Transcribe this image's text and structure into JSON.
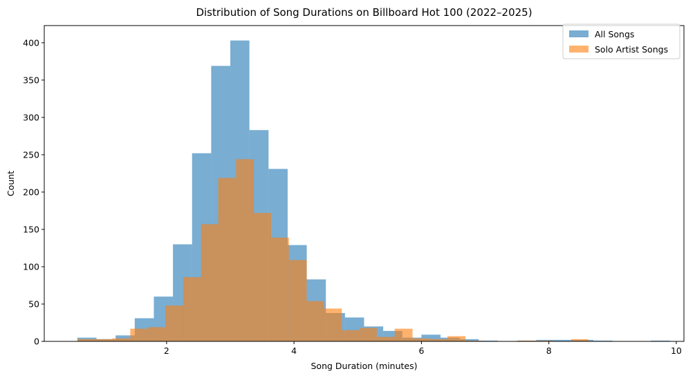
{
  "chart_data": {
    "type": "histogram",
    "title": "Distribution of Song Durations on Billboard Hot 100 (2022–2025)",
    "xlabel": "Song Duration (minutes)",
    "ylabel": "Count",
    "xlim": [
      0.08,
      10.12
    ],
    "ylim": [
      0,
      423
    ],
    "x_ticks": [
      2,
      4,
      6,
      8,
      10
    ],
    "y_ticks": [
      0,
      50,
      100,
      150,
      200,
      250,
      300,
      350,
      400
    ],
    "legend_position": "top-right",
    "grid": false,
    "series": [
      {
        "name": "All Songs",
        "color": "#1f77b4",
        "opacity": 0.6,
        "bins": [
          [
            0.6,
            0.9,
            5
          ],
          [
            0.9,
            1.2,
            3
          ],
          [
            1.2,
            1.5,
            8
          ],
          [
            1.5,
            1.8,
            31
          ],
          [
            1.8,
            2.1,
            60
          ],
          [
            2.1,
            2.4,
            130
          ],
          [
            2.4,
            2.7,
            252
          ],
          [
            2.7,
            3.0,
            369
          ],
          [
            3.0,
            3.3,
            403
          ],
          [
            3.3,
            3.6,
            283
          ],
          [
            3.6,
            3.9,
            231
          ],
          [
            3.9,
            4.2,
            129
          ],
          [
            4.2,
            4.5,
            83
          ],
          [
            4.5,
            4.8,
            38
          ],
          [
            4.8,
            5.1,
            32
          ],
          [
            5.1,
            5.4,
            20
          ],
          [
            5.4,
            5.7,
            14
          ],
          [
            5.7,
            6.0,
            5
          ],
          [
            6.0,
            6.3,
            9
          ],
          [
            6.3,
            6.6,
            5
          ],
          [
            6.6,
            6.9,
            3
          ],
          [
            6.9,
            7.2,
            1
          ],
          [
            7.2,
            7.5,
            0
          ],
          [
            7.5,
            7.8,
            1
          ],
          [
            7.8,
            8.1,
            2
          ],
          [
            8.1,
            8.4,
            2
          ],
          [
            8.4,
            8.7,
            2
          ],
          [
            8.7,
            9.0,
            1
          ],
          [
            9.0,
            9.3,
            0
          ],
          [
            9.3,
            9.6,
            0
          ],
          [
            9.6,
            9.9,
            1
          ]
        ]
      },
      {
        "name": "Solo Artist Songs",
        "color": "#ff7f0e",
        "opacity": 0.6,
        "bins": [
          [
            0.6,
            0.88,
            3
          ],
          [
            0.88,
            1.15,
            3
          ],
          [
            1.15,
            1.43,
            4
          ],
          [
            1.43,
            1.71,
            17
          ],
          [
            1.71,
            1.98,
            19
          ],
          [
            1.98,
            2.26,
            48
          ],
          [
            2.26,
            2.54,
            86
          ],
          [
            2.54,
            2.81,
            157
          ],
          [
            2.81,
            3.09,
            219
          ],
          [
            3.09,
            3.37,
            244
          ],
          [
            3.37,
            3.64,
            172
          ],
          [
            3.64,
            3.92,
            139
          ],
          [
            3.92,
            4.2,
            109
          ],
          [
            4.2,
            4.47,
            54
          ],
          [
            4.47,
            4.75,
            44
          ],
          [
            4.75,
            5.03,
            15
          ],
          [
            5.03,
            5.3,
            18
          ],
          [
            5.3,
            5.58,
            6
          ],
          [
            5.58,
            5.86,
            17
          ],
          [
            5.86,
            6.13,
            4
          ],
          [
            6.13,
            6.41,
            3
          ],
          [
            6.41,
            6.69,
            7
          ],
          [
            6.69,
            6.96,
            1
          ],
          [
            6.96,
            7.24,
            0
          ],
          [
            7.24,
            7.52,
            0
          ],
          [
            7.52,
            7.79,
            1
          ],
          [
            7.79,
            8.07,
            1
          ],
          [
            8.07,
            8.35,
            0
          ],
          [
            8.35,
            8.62,
            3
          ],
          [
            8.62,
            8.9,
            0
          ]
        ]
      }
    ]
  }
}
